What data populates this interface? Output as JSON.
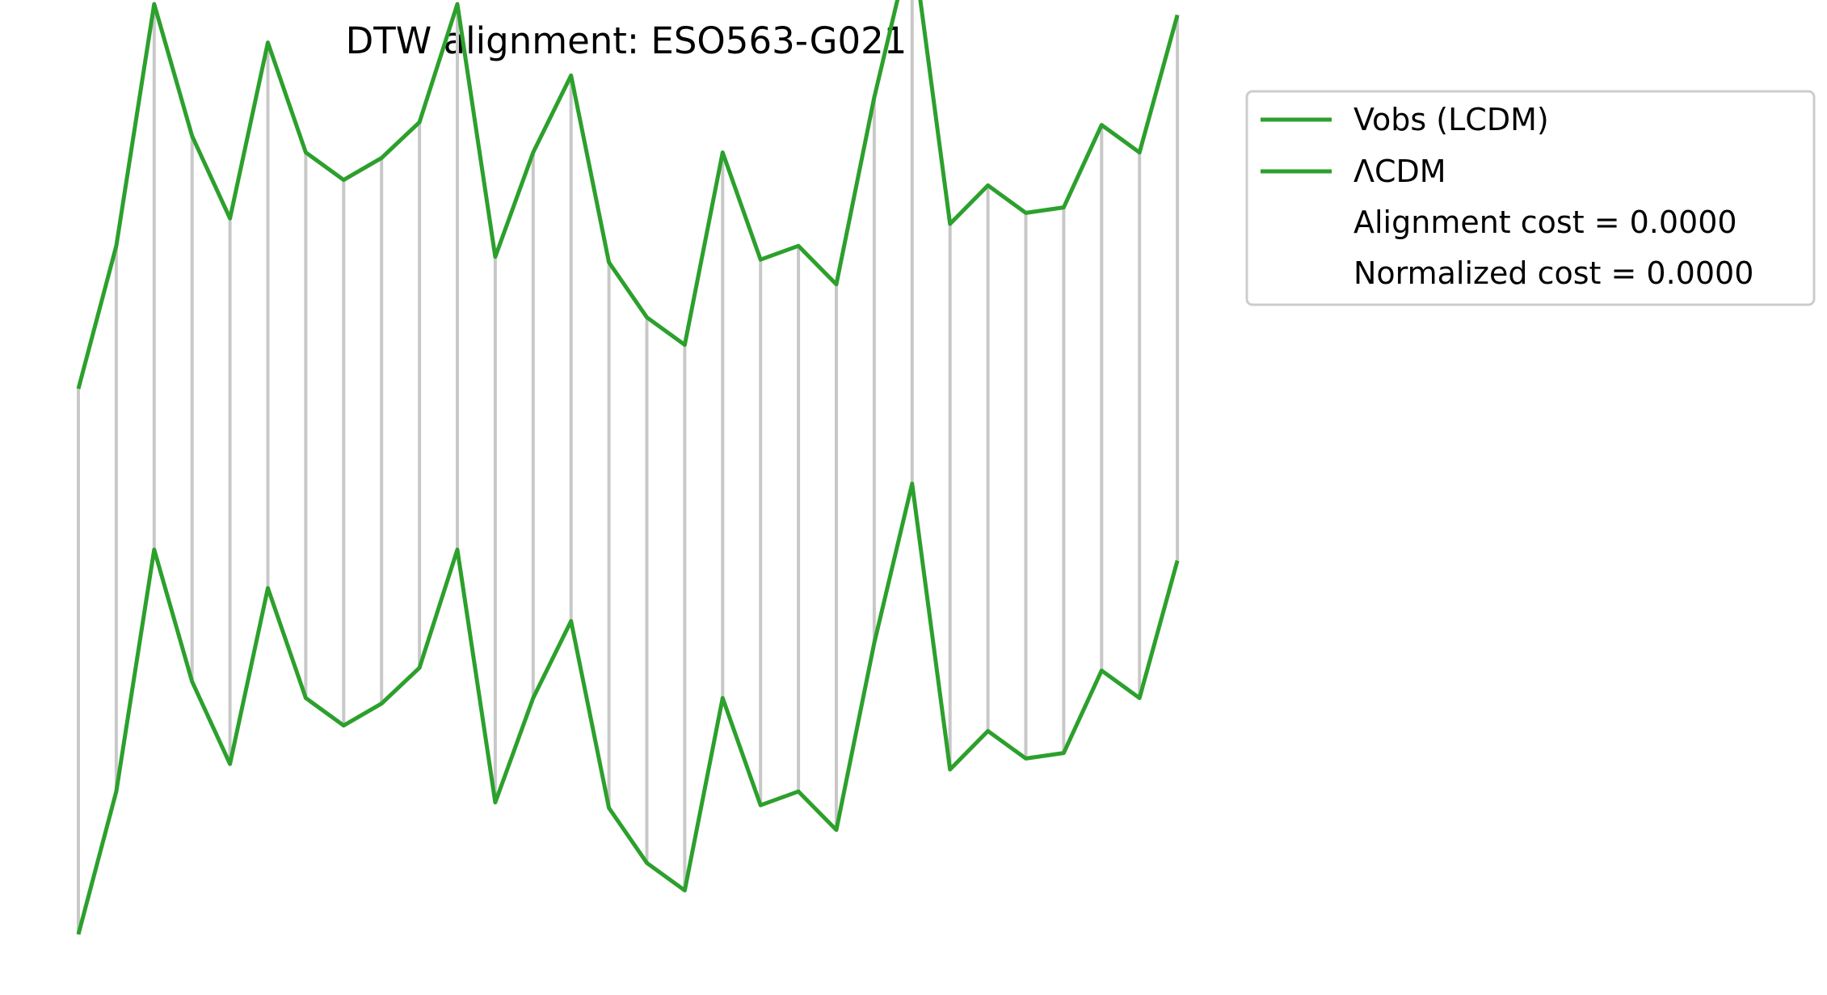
{
  "chart_data": {
    "type": "line",
    "title": "DTW alignment: ESO563-G021",
    "x": [
      0,
      1,
      2,
      3,
      4,
      5,
      6,
      7,
      8,
      9,
      10,
      11,
      12,
      13,
      14,
      15,
      16,
      17,
      18,
      19,
      20,
      21,
      22,
      23,
      24,
      25,
      26,
      27,
      28,
      29
    ],
    "series": [
      {
        "name": "Vobs (LCDM)",
        "color": "#2ca02c",
        "values": [
          0.0,
          0.52,
          1.4,
          0.92,
          0.62,
          1.26,
          0.86,
          0.76,
          0.84,
          0.97,
          1.4,
          0.48,
          0.86,
          1.14,
          0.46,
          0.26,
          0.16,
          0.86,
          0.47,
          0.52,
          0.38,
          1.06,
          1.64,
          0.6,
          0.74,
          0.64,
          0.66,
          0.96,
          0.86,
          1.36
        ]
      },
      {
        "name": "ΛCDM",
        "color": "#2ca02c",
        "values": [
          0.0,
          0.52,
          1.4,
          0.92,
          0.62,
          1.26,
          0.86,
          0.76,
          0.84,
          0.97,
          1.4,
          0.48,
          0.86,
          1.14,
          0.46,
          0.26,
          0.16,
          0.86,
          0.47,
          0.52,
          0.38,
          1.06,
          1.64,
          0.6,
          0.74,
          0.64,
          0.66,
          0.96,
          0.86,
          1.36
        ]
      }
    ],
    "connector_color": "#c8c8c8",
    "axes_visible": false,
    "legend_position": "outside-top-right",
    "legend_extra": [
      "Alignment cost = 0.0000",
      "Normalized cost = 0.0000"
    ]
  }
}
